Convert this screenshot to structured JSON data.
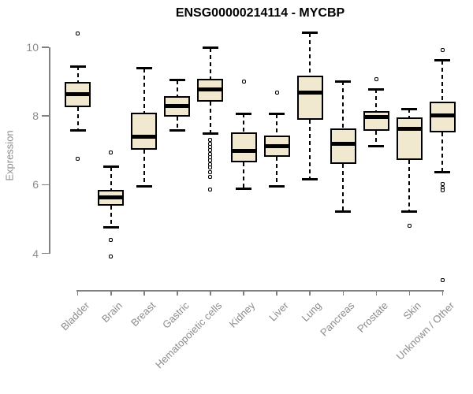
{
  "title": "ENSG00000214114 - MYCBP",
  "chart_data": {
    "type": "boxplot",
    "title": "ENSG00000214114 - MYCBP",
    "ylabel": "Expression",
    "xlabel": "",
    "yticks": [
      10,
      8,
      6,
      4
    ],
    "ylim": [
      3.0,
      10.6
    ],
    "grid": "off",
    "legend": "none",
    "categories": [
      "Bladder",
      "Brain",
      "Breast",
      "Gastric",
      "Hematopoietic cells",
      "Kidney",
      "Liver",
      "Lung",
      "Pancreas",
      "Prostate",
      "Skin",
      "Unknown / Other"
    ],
    "series": [
      {
        "name": "Bladder",
        "whisker_low": 7.59,
        "q1": 8.26,
        "median": 8.64,
        "q3": 9.0,
        "whisker_high": 9.44,
        "outliers": [
          10.4,
          6.75
        ]
      },
      {
        "name": "Brain",
        "whisker_low": 4.76,
        "q1": 5.39,
        "median": 5.64,
        "q3": 5.85,
        "whisker_high": 6.52,
        "outliers": [
          6.94,
          4.4,
          3.9
        ]
      },
      {
        "name": "Breast",
        "whisker_low": 5.95,
        "q1": 7.02,
        "median": 7.4,
        "q3": 8.09,
        "whisker_high": 9.39,
        "outliers": []
      },
      {
        "name": "Gastric",
        "whisker_low": 7.59,
        "q1": 7.99,
        "median": 8.28,
        "q3": 8.57,
        "whisker_high": 9.04,
        "outliers": []
      },
      {
        "name": "Hematopoietic cells",
        "whisker_low": 7.49,
        "q1": 8.42,
        "median": 8.78,
        "q3": 9.08,
        "whisker_high": 9.98,
        "outliers": [
          7.3,
          7.2,
          7.1,
          7.0,
          6.9,
          6.8,
          6.7,
          6.6,
          6.5,
          6.37,
          6.22,
          5.87
        ]
      },
      {
        "name": "Kidney",
        "whisker_low": 5.89,
        "q1": 6.64,
        "median": 6.99,
        "q3": 7.52,
        "whisker_high": 8.07,
        "outliers": [
          9.01
        ]
      },
      {
        "name": "Liver",
        "whisker_low": 5.95,
        "q1": 6.81,
        "median": 7.13,
        "q3": 7.44,
        "whisker_high": 8.06,
        "outliers": [
          8.68
        ]
      },
      {
        "name": "Lung",
        "whisker_low": 6.15,
        "q1": 7.9,
        "median": 8.68,
        "q3": 9.18,
        "whisker_high": 10.42,
        "outliers": []
      },
      {
        "name": "Pancreas",
        "whisker_low": 5.22,
        "q1": 6.61,
        "median": 7.18,
        "q3": 7.63,
        "whisker_high": 9.01,
        "outliers": []
      },
      {
        "name": "Prostate",
        "whisker_low": 7.13,
        "q1": 7.57,
        "median": 7.98,
        "q3": 8.14,
        "whisker_high": 8.78,
        "outliers": [
          9.08
        ]
      },
      {
        "name": "Skin",
        "whisker_low": 5.22,
        "q1": 6.71,
        "median": 7.63,
        "q3": 7.95,
        "whisker_high": 8.2,
        "outliers": [
          4.8
        ]
      },
      {
        "name": "Unknown / Other",
        "whisker_low": 6.37,
        "q1": 7.52,
        "median": 8.01,
        "q3": 8.41,
        "whisker_high": 9.62,
        "outliers": [
          9.91,
          6.02,
          5.9,
          5.83,
          3.23
        ]
      }
    ]
  },
  "colors": {
    "box_fill": "#f0e9cf",
    "box_border": "#000000",
    "axis": "#808080",
    "tick_label": "#8c8c8c",
    "title": "#000000"
  }
}
